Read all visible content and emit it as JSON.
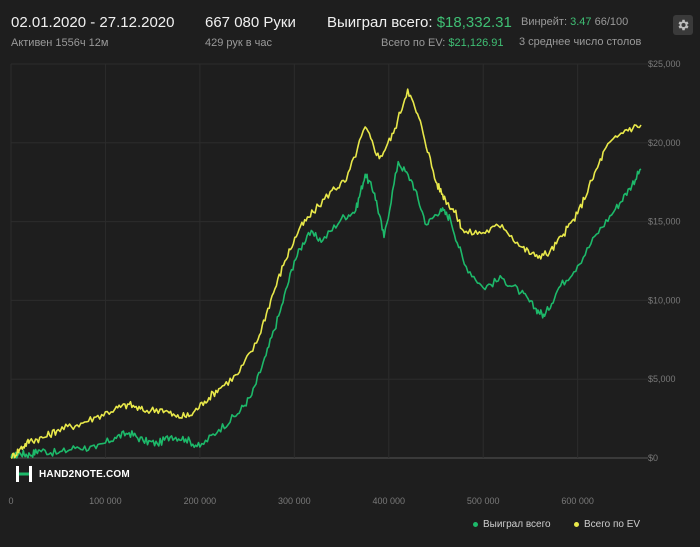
{
  "header": {
    "date_range": "02.01.2020 - 27.12.2020",
    "active": "Активен 1556ч 12м",
    "hands": "667 080 Руки",
    "hands_rate": "429 рук в час",
    "won_label": "Выиграл всего:",
    "won_value": "$18,332.31",
    "ev_label": "Всего по EV:",
    "ev_value": "$21,126.91",
    "winrate_label": "Винрейт:",
    "winrate_value": "3.47",
    "winrate_suffix": "66/100",
    "tables_text": "3 среднее число столов"
  },
  "logo": {
    "text": "HAND2NOTE.COM"
  },
  "colors": {
    "won": "#1db96a",
    "ev": "#e8e84a",
    "background": "#1e1e1e",
    "grid": "#2c2c2c"
  },
  "chart_data": {
    "type": "line",
    "title": "",
    "xlabel": "",
    "ylabel": "",
    "xlim": [
      0,
      667080
    ],
    "ylim": [
      0,
      25000
    ],
    "x_ticks": [
      {
        "v": 0,
        "label": "0"
      },
      {
        "v": 100000,
        "label": "100 000"
      },
      {
        "v": 200000,
        "label": "200 000"
      },
      {
        "v": 300000,
        "label": "300 000"
      },
      {
        "v": 400000,
        "label": "400 000"
      },
      {
        "v": 500000,
        "label": "500 000"
      },
      {
        "v": 600000,
        "label": "600 000"
      }
    ],
    "y_ticks": [
      {
        "v": 0,
        "label": "$0"
      },
      {
        "v": 5000,
        "label": "$5,000"
      },
      {
        "v": 10000,
        "label": "$10,000"
      },
      {
        "v": 15000,
        "label": "$15,000"
      },
      {
        "v": 20000,
        "label": "$20,000"
      },
      {
        "v": 25000,
        "label": "$25,000"
      }
    ],
    "grid": true,
    "legend_position": "bottom-right",
    "series": [
      {
        "name": "Выиграл всего",
        "color": "#1db96a",
        "points": [
          [
            0,
            0
          ],
          [
            10000,
            300
          ],
          [
            20000,
            200
          ],
          [
            30000,
            500
          ],
          [
            50000,
            300
          ],
          [
            70000,
            700
          ],
          [
            90000,
            600
          ],
          [
            110000,
            1300
          ],
          [
            125000,
            1600
          ],
          [
            140000,
            1100
          ],
          [
            155000,
            900
          ],
          [
            170000,
            1400
          ],
          [
            185000,
            1200
          ],
          [
            200000,
            700
          ],
          [
            220000,
            1800
          ],
          [
            240000,
            2800
          ],
          [
            255000,
            4000
          ],
          [
            270000,
            6500
          ],
          [
            285000,
            9300
          ],
          [
            300000,
            12500
          ],
          [
            315000,
            14300
          ],
          [
            330000,
            13800
          ],
          [
            350000,
            15200
          ],
          [
            365000,
            15700
          ],
          [
            375000,
            18000
          ],
          [
            385000,
            16800
          ],
          [
            395000,
            14000
          ],
          [
            410000,
            18800
          ],
          [
            425000,
            17500
          ],
          [
            440000,
            14800
          ],
          [
            455000,
            15800
          ],
          [
            465000,
            15200
          ],
          [
            480000,
            12300
          ],
          [
            500000,
            10800
          ],
          [
            520000,
            11400
          ],
          [
            540000,
            10500
          ],
          [
            555000,
            9500
          ],
          [
            565000,
            9000
          ],
          [
            580000,
            10800
          ],
          [
            600000,
            12200
          ],
          [
            620000,
            14200
          ],
          [
            640000,
            15800
          ],
          [
            655000,
            17100
          ],
          [
            667080,
            18332
          ]
        ]
      },
      {
        "name": "Всего по EV",
        "color": "#e8e84a",
        "points": [
          [
            0,
            0
          ],
          [
            10000,
            600
          ],
          [
            20000,
            1100
          ],
          [
            35000,
            1300
          ],
          [
            50000,
            1800
          ],
          [
            70000,
            2100
          ],
          [
            90000,
            2600
          ],
          [
            110000,
            3100
          ],
          [
            125000,
            3400
          ],
          [
            140000,
            3000
          ],
          [
            160000,
            3100
          ],
          [
            175000,
            2600
          ],
          [
            190000,
            2700
          ],
          [
            205000,
            3600
          ],
          [
            220000,
            4400
          ],
          [
            240000,
            5300
          ],
          [
            260000,
            7300
          ],
          [
            275000,
            10000
          ],
          [
            290000,
            12500
          ],
          [
            305000,
            14500
          ],
          [
            320000,
            15600
          ],
          [
            340000,
            17000
          ],
          [
            355000,
            17600
          ],
          [
            375000,
            21000
          ],
          [
            390000,
            19000
          ],
          [
            405000,
            20600
          ],
          [
            420000,
            23400
          ],
          [
            435000,
            21000
          ],
          [
            450000,
            17500
          ],
          [
            460000,
            16400
          ],
          [
            470000,
            15600
          ],
          [
            480000,
            14300
          ],
          [
            500000,
            14300
          ],
          [
            520000,
            14800
          ],
          [
            540000,
            13400
          ],
          [
            555000,
            12800
          ],
          [
            570000,
            13000
          ],
          [
            585000,
            14200
          ],
          [
            600000,
            15500
          ],
          [
            615000,
            17600
          ],
          [
            630000,
            19700
          ],
          [
            650000,
            20800
          ],
          [
            667080,
            21127
          ]
        ]
      }
    ]
  }
}
